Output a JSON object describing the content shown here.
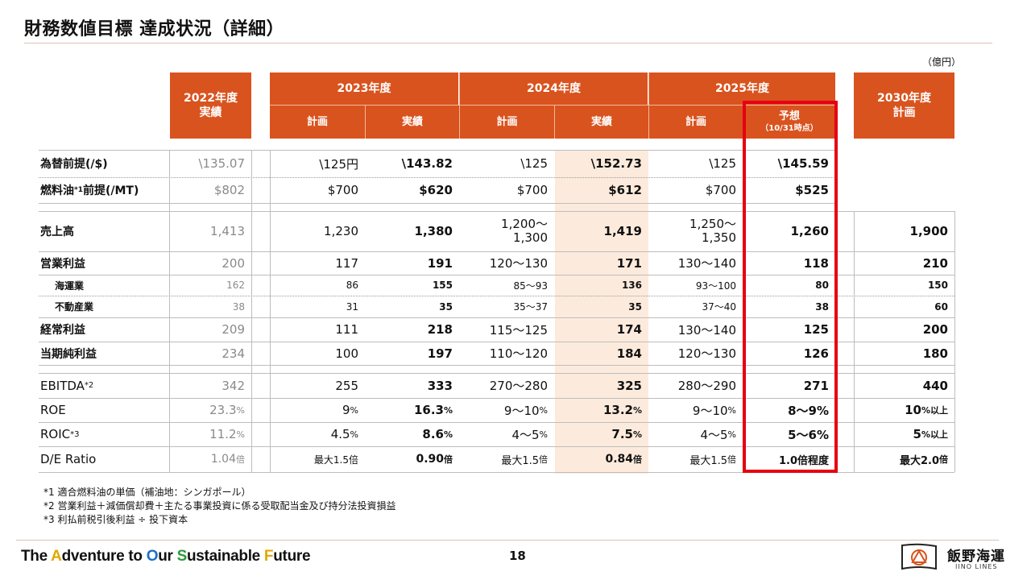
{
  "title": "財務数値目標 達成状況（詳細）",
  "unit": "（億円）",
  "headers": {
    "fy2022": "2022年度",
    "fy2022_sub": "実績",
    "fy2023": "2023年度",
    "fy2024": "2024年度",
    "fy2025": "2025年度",
    "fy2030": "2030年度",
    "fy2030_sub": "計画",
    "plan": "計画",
    "actual": "実績",
    "forecast": "予想",
    "forecast_sub": "（10/31時点）"
  },
  "rows": {
    "fx": {
      "label": "為替前提(/$)",
      "c2022": "\\135.07",
      "p2023": "\\125円",
      "a2023": "\\143.82",
      "p2024": "\\125",
      "a2024": "\\152.73",
      "p2025": "\\125",
      "f2025": "\\145.59"
    },
    "fuel": {
      "label_a": "燃料油",
      "label_note": "*1",
      "label_b": "前提(/MT)",
      "c2022": "$802",
      "p2023": "$700",
      "a2023": "$620",
      "p2024": "$700",
      "a2024": "$612",
      "p2025": "$700",
      "f2025": "$525"
    },
    "sales": {
      "label": "売上高",
      "c2022": "1,413",
      "p2023": "1,230",
      "a2023": "1,380",
      "p2024_1": "1,200～",
      "p2024_2": "1,300",
      "a2024": "1,419",
      "p2025_1": "1,250～",
      "p2025_2": "1,350",
      "f2025": "1,260",
      "p2030": "1,900"
    },
    "op": {
      "label": "営業利益",
      "c2022": "200",
      "p2023": "117",
      "a2023": "191",
      "p2024": "120～130",
      "a2024": "171",
      "p2025": "130～140",
      "f2025": "118",
      "p2030": "210"
    },
    "shipping": {
      "label": "海運業",
      "c2022": "162",
      "p2023": "86",
      "a2023": "155",
      "p2024": "85～93",
      "a2024": "136",
      "p2025": "93～100",
      "f2025": "80",
      "p2030": "150"
    },
    "realestate": {
      "label": "不動産業",
      "c2022": "38",
      "p2023": "31",
      "a2023": "35",
      "p2024": "35～37",
      "a2024": "35",
      "p2025": "37～40",
      "f2025": "38",
      "p2030": "60"
    },
    "ordinary": {
      "label": "経常利益",
      "c2022": "209",
      "p2023": "111",
      "a2023": "218",
      "p2024": "115～125",
      "a2024": "174",
      "p2025": "130～140",
      "f2025": "125",
      "p2030": "200"
    },
    "net": {
      "label": "当期純利益",
      "c2022": "234",
      "p2023": "100",
      "a2023": "197",
      "p2024": "110～120",
      "a2024": "184",
      "p2025": "120～130",
      "f2025": "126",
      "p2030": "180"
    },
    "ebitda": {
      "label_a": "EBITDA",
      "label_note": "*2",
      "c2022": "342",
      "p2023": "255",
      "a2023": "333",
      "p2024": "270～280",
      "a2024": "325",
      "p2025": "280～290",
      "f2025": "271",
      "p2030": "440"
    },
    "roe": {
      "label": "ROE",
      "c2022": "23.3",
      "p2023": "9",
      "a2023": "16.3",
      "p2024": "9～10",
      "a2024": "13.2",
      "p2025": "9～10",
      "f2025": "8～9%",
      "p2030": "10",
      "pct": "%",
      "above": "以上"
    },
    "roic": {
      "label_a": "ROIC",
      "label_note": "*3",
      "c2022": "11.2",
      "p2023": "4.5",
      "a2023": "8.6",
      "p2024": "4～5",
      "a2024": "7.5",
      "p2025": "4～5",
      "f2025": "5～6%",
      "p2030": "5",
      "pct": "%",
      "above": "以上"
    },
    "de": {
      "label": "D/E Ratio",
      "c2022": "1.04",
      "p2023": "最大1.5倍",
      "a2023": "0.90",
      "p2024": "最大1.5",
      "a2024": "0.84",
      "p2025": "最大1.5",
      "f2025": "1.0倍程度",
      "p2030": "最大2.0",
      "times": "倍"
    }
  },
  "notes": [
    {
      "mark": "*1",
      "text": "適合燃料油の単価（補油地：シンガポール）"
    },
    {
      "mark": "*2",
      "text": "営業利益＋減価償却費＋主たる事業投資に係る受取配当金及び持分法投資損益"
    },
    {
      "mark": "*3",
      "text": "利払前税引後利益 ÷ 投下資本"
    }
  ],
  "footer": {
    "tag_the": "The ",
    "tag_a": "A",
    "tag_dventure": "dventure to ",
    "tag_o": "O",
    "tag_ur": "ur ",
    "tag_s": "S",
    "tag_ustainable": "ustainable ",
    "tag_f": "F",
    "tag_uture": "uture",
    "page": "18",
    "company": "飯野海運",
    "company_en": "IINO LINES"
  },
  "colors": {
    "header": "#d9531e",
    "highlight": "#fcebdc",
    "frame": "#e60012"
  }
}
